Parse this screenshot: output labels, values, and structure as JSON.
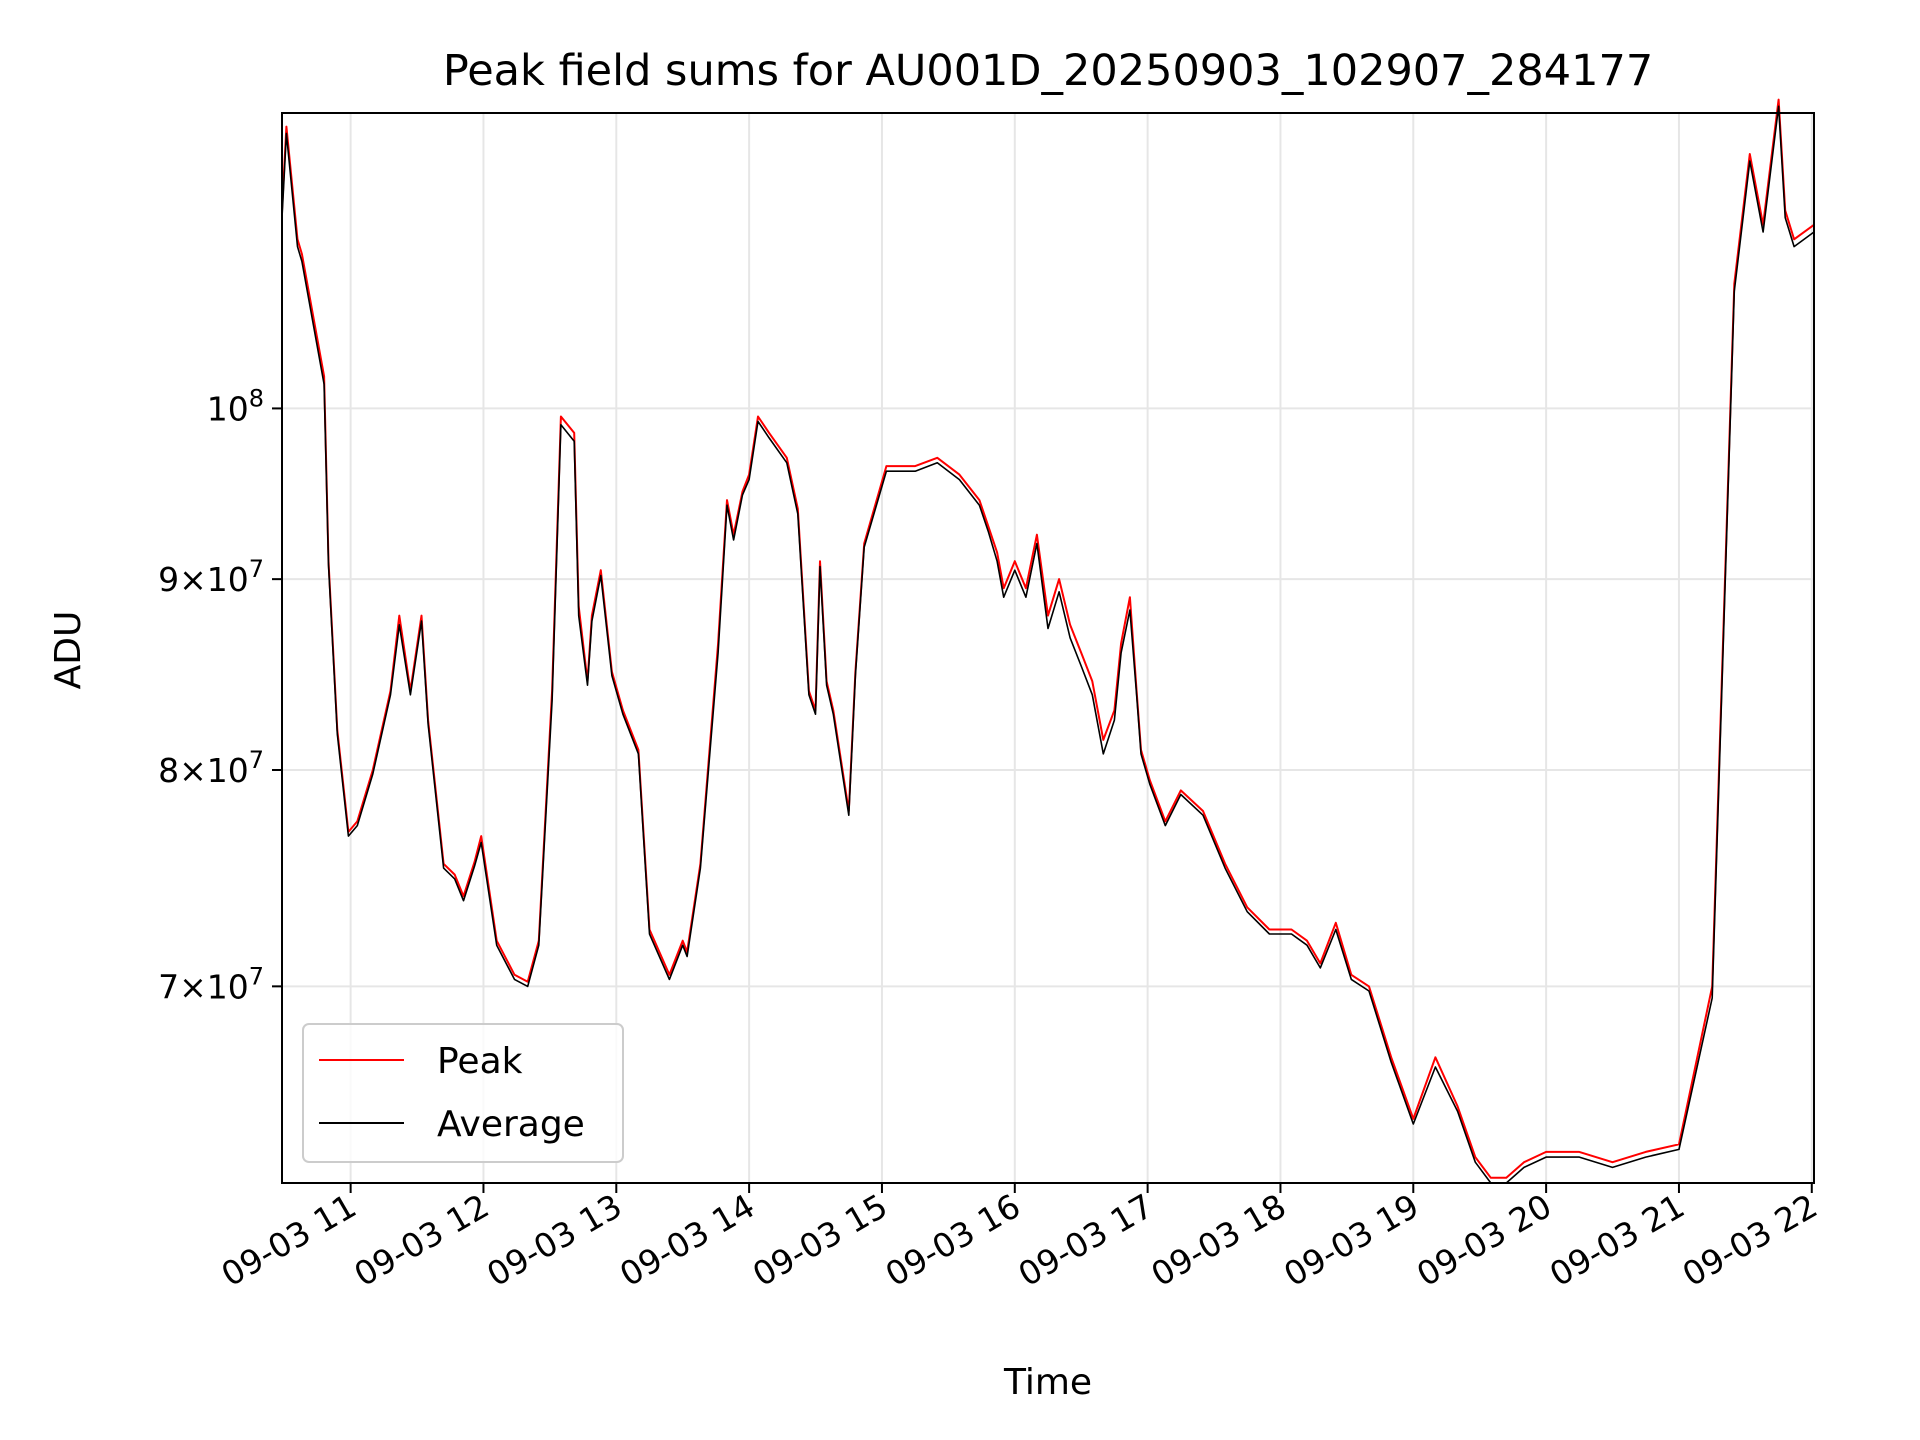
{
  "chart_data": {
    "type": "line",
    "title": "Peak field sums for AU001D_20250903_102907_284177",
    "xlabel": "Time",
    "ylabel": "ADU",
    "yscale": "log",
    "ylim": [
      62000000,
      120000000
    ],
    "xlim": [
      "2025-09-03 10:29",
      "2025-09-03 22:01"
    ],
    "grid": true,
    "legend_position": "lower-left",
    "x_tick_labels": [
      "09-03 11",
      "09-03 12",
      "09-03 13",
      "09-03 14",
      "09-03 15",
      "09-03 16",
      "09-03 17",
      "09-03 18",
      "09-03 19",
      "09-03 20",
      "09-03 21",
      "09-03 22"
    ],
    "x_ticks": [
      "2025-09-03 11:00",
      "2025-09-03 12:00",
      "2025-09-03 13:00",
      "2025-09-03 14:00",
      "2025-09-03 15:00",
      "2025-09-03 16:00",
      "2025-09-03 17:00",
      "2025-09-03 18:00",
      "2025-09-03 19:00",
      "2025-09-03 20:00",
      "2025-09-03 21:00",
      "2025-09-03 22:00"
    ],
    "y_ticks": [
      {
        "value": 70000000,
        "mantissa": "7",
        "exponent": "7"
      },
      {
        "value": 80000000,
        "mantissa": "8",
        "exponent": "7"
      },
      {
        "value": 90000000,
        "mantissa": "9",
        "exponent": "7"
      },
      {
        "value": 100000000,
        "base": "10",
        "exponent": "8"
      }
    ],
    "x": [
      "2025-09-03 10:29",
      "2025-09-03 10:31",
      "2025-09-03 10:36",
      "2025-09-03 10:38",
      "2025-09-03 10:48",
      "2025-09-03 10:50",
      "2025-09-03 10:54",
      "2025-09-03 10:59",
      "2025-09-03 11:03",
      "2025-09-03 11:10",
      "2025-09-03 11:18",
      "2025-09-03 11:22",
      "2025-09-03 11:27",
      "2025-09-03 11:32",
      "2025-09-03 11:35",
      "2025-09-03 11:42",
      "2025-09-03 11:47",
      "2025-09-03 11:51",
      "2025-09-03 11:56",
      "2025-09-03 11:59",
      "2025-09-03 12:06",
      "2025-09-03 12:14",
      "2025-09-03 12:20",
      "2025-09-03 12:25",
      "2025-09-03 12:31",
      "2025-09-03 12:35",
      "2025-09-03 12:41",
      "2025-09-03 12:43",
      "2025-09-03 12:47",
      "2025-09-03 12:49",
      "2025-09-03 12:53",
      "2025-09-03 12:58",
      "2025-09-03 13:03",
      "2025-09-03 13:10",
      "2025-09-03 13:15",
      "2025-09-03 13:24",
      "2025-09-03 13:30",
      "2025-09-03 13:32",
      "2025-09-03 13:38",
      "2025-09-03 13:46",
      "2025-09-03 13:50",
      "2025-09-03 13:53",
      "2025-09-03 13:57",
      "2025-09-03 14:00",
      "2025-09-03 14:04",
      "2025-09-03 14:09",
      "2025-09-03 14:17",
      "2025-09-03 14:22",
      "2025-09-03 14:27",
      "2025-09-03 14:30",
      "2025-09-03 14:32",
      "2025-09-03 14:35",
      "2025-09-03 14:38",
      "2025-09-03 14:45",
      "2025-09-03 14:48",
      "2025-09-03 14:52",
      "2025-09-03 15:02",
      "2025-09-03 15:15",
      "2025-09-03 15:25",
      "2025-09-03 15:35",
      "2025-09-03 15:44",
      "2025-09-03 15:48",
      "2025-09-03 15:52",
      "2025-09-03 15:55",
      "2025-09-03 16:00",
      "2025-09-03 16:05",
      "2025-09-03 16:10",
      "2025-09-03 16:15",
      "2025-09-03 16:20",
      "2025-09-03 16:25",
      "2025-09-03 16:30",
      "2025-09-03 16:35",
      "2025-09-03 16:40",
      "2025-09-03 16:45",
      "2025-09-03 16:48",
      "2025-09-03 16:52",
      "2025-09-03 16:55",
      "2025-09-03 16:57",
      "2025-09-03 17:01",
      "2025-09-03 17:08",
      "2025-09-03 17:15",
      "2025-09-03 17:25",
      "2025-09-03 17:35",
      "2025-09-03 17:45",
      "2025-09-03 17:55",
      "2025-09-03 18:05",
      "2025-09-03 18:12",
      "2025-09-03 18:18",
      "2025-09-03 18:25",
      "2025-09-03 18:32",
      "2025-09-03 18:40",
      "2025-09-03 18:50",
      "2025-09-03 19:00",
      "2025-09-03 19:10",
      "2025-09-03 19:20",
      "2025-09-03 19:28",
      "2025-09-03 19:35",
      "2025-09-03 19:42",
      "2025-09-03 19:50",
      "2025-09-03 20:00",
      "2025-09-03 20:15",
      "2025-09-03 20:30",
      "2025-09-03 20:45",
      "2025-09-03 21:00",
      "2025-09-03 21:15",
      "2025-09-03 21:25",
      "2025-09-03 21:32",
      "2025-09-03 21:38",
      "2025-09-03 21:45",
      "2025-09-03 21:48",
      "2025-09-03 21:52",
      "2025-09-03 22:01"
    ],
    "series": [
      {
        "name": "Peak",
        "color": "#ff0000",
        "values": [
          113000000,
          119000000,
          111000000,
          110000000,
          102000000,
          91000000,
          82000000,
          77000000,
          77500000,
          80000000,
          84000000,
          88000000,
          84000000,
          88000000,
          82500000,
          75500000,
          75000000,
          74000000,
          75600000,
          76800000,
          72000000,
          70500000,
          70200000,
          72000000,
          84000000,
          99500000,
          98500000,
          88500000,
          84500000,
          88000000,
          90500000,
          85000000,
          83000000,
          81000000,
          72500000,
          70500000,
          72000000,
          71500000,
          75500000,
          86500000,
          94500000,
          92500000,
          95000000,
          96000000,
          99500000,
          98500000,
          97000000,
          94000000,
          84000000,
          83000000,
          91000000,
          84500000,
          83000000,
          78000000,
          85000000,
          92000000,
          96500000,
          96500000,
          97000000,
          96000000,
          94500000,
          93000000,
          91500000,
          89500000,
          91000000,
          89500000,
          92500000,
          88000000,
          90000000,
          87500000,
          86000000,
          84500000,
          81500000,
          83000000,
          86500000,
          89000000,
          84000000,
          81000000,
          79500000,
          77500000,
          79000000,
          78000000,
          75500000,
          73500000,
          72500000,
          72500000,
          72000000,
          71000000,
          72800000,
          70500000,
          70000000,
          67000000,
          64500000,
          67000000,
          65000000,
          63000000,
          62200000,
          62200000,
          62800000,
          63200000,
          63200000,
          62800000,
          63200000,
          63500000,
          70000000,
          108000000,
          117000000,
          112000000,
          121000000,
          113000000,
          111000000,
          112000000
        ]
      },
      {
        "name": "Average",
        "color": "#000000",
        "values": [
          112500000,
          118500000,
          110500000,
          109500000,
          101500000,
          90800000,
          81800000,
          76800000,
          77300000,
          79800000,
          83800000,
          87500000,
          83800000,
          87700000,
          82300000,
          75300000,
          74800000,
          73800000,
          75400000,
          76500000,
          71800000,
          70300000,
          70000000,
          71800000,
          83500000,
          99000000,
          98000000,
          88000000,
          84300000,
          87700000,
          90200000,
          84800000,
          82800000,
          80800000,
          72300000,
          70300000,
          71800000,
          71300000,
          75300000,
          86000000,
          94200000,
          92200000,
          94800000,
          95700000,
          99200000,
          98200000,
          96700000,
          93700000,
          83800000,
          82800000,
          90700000,
          84300000,
          82800000,
          77800000,
          84800000,
          91800000,
          96200000,
          96200000,
          96700000,
          95700000,
          94200000,
          92700000,
          91000000,
          89000000,
          90500000,
          89000000,
          92000000,
          87300000,
          89300000,
          86800000,
          85300000,
          83800000,
          80800000,
          82500000,
          86000000,
          88300000,
          83800000,
          80800000,
          79300000,
          77300000,
          78800000,
          77800000,
          75300000,
          73300000,
          72300000,
          72300000,
          71800000,
          70800000,
          72500000,
          70300000,
          69800000,
          66800000,
          64300000,
          66600000,
          64800000,
          62800000,
          62000000,
          62000000,
          62600000,
          63000000,
          63000000,
          62600000,
          63000000,
          63300000,
          69500000,
          107500000,
          116500000,
          111500000,
          120500000,
          112500000,
          110500000,
          111500000
        ]
      }
    ]
  }
}
